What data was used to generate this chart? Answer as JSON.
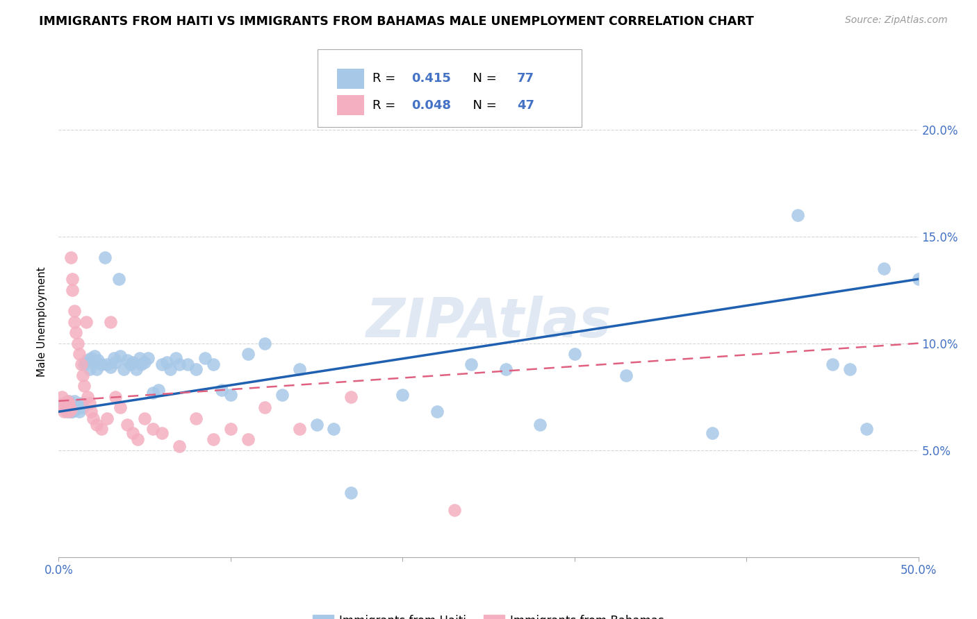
{
  "title": "IMMIGRANTS FROM HAITI VS IMMIGRANTS FROM BAHAMAS MALE UNEMPLOYMENT CORRELATION CHART",
  "source": "Source: ZipAtlas.com",
  "xlabel_haiti": "Immigrants from Haiti",
  "xlabel_bahamas": "Immigrants from Bahamas",
  "ylabel": "Male Unemployment",
  "xlim": [
    0.0,
    0.5
  ],
  "ylim": [
    0.0,
    0.22
  ],
  "xtick_positions": [
    0.0,
    0.1,
    0.2,
    0.3,
    0.4,
    0.5
  ],
  "xtick_labels": [
    "0.0%",
    "",
    "",
    "",
    "",
    "50.0%"
  ],
  "yticks": [
    0.05,
    0.1,
    0.15,
    0.2
  ],
  "ytick_labels": [
    "5.0%",
    "10.0%",
    "15.0%",
    "20.0%"
  ],
  "haiti_R": 0.415,
  "haiti_N": 77,
  "bahamas_R": 0.048,
  "bahamas_N": 47,
  "haiti_color": "#a8c8e8",
  "bahamas_color": "#f4afc0",
  "haiti_line_color": "#2060b0",
  "bahamas_line_color": "#e06080",
  "watermark": "ZIPAtlas",
  "haiti_scatter_x": [
    0.003,
    0.004,
    0.005,
    0.005,
    0.006,
    0.006,
    0.007,
    0.007,
    0.008,
    0.008,
    0.009,
    0.01,
    0.01,
    0.011,
    0.012,
    0.013,
    0.014,
    0.015,
    0.016,
    0.017,
    0.018,
    0.019,
    0.02,
    0.021,
    0.022,
    0.023,
    0.025,
    0.027,
    0.028,
    0.03,
    0.032,
    0.033,
    0.035,
    0.036,
    0.038,
    0.04,
    0.042,
    0.043,
    0.045,
    0.047,
    0.048,
    0.05,
    0.052,
    0.055,
    0.058,
    0.06,
    0.063,
    0.065,
    0.068,
    0.07,
    0.075,
    0.08,
    0.085,
    0.09,
    0.095,
    0.1,
    0.11,
    0.12,
    0.13,
    0.14,
    0.15,
    0.16,
    0.17,
    0.2,
    0.22,
    0.24,
    0.26,
    0.28,
    0.3,
    0.33,
    0.38,
    0.43,
    0.45,
    0.46,
    0.47,
    0.48,
    0.5
  ],
  "haiti_scatter_y": [
    0.072,
    0.069,
    0.072,
    0.068,
    0.07,
    0.073,
    0.068,
    0.071,
    0.07,
    0.068,
    0.073,
    0.069,
    0.071,
    0.07,
    0.068,
    0.072,
    0.07,
    0.09,
    0.091,
    0.092,
    0.088,
    0.093,
    0.091,
    0.094,
    0.088,
    0.092,
    0.09,
    0.14,
    0.09,
    0.089,
    0.093,
    0.091,
    0.13,
    0.094,
    0.088,
    0.092,
    0.09,
    0.091,
    0.088,
    0.093,
    0.09,
    0.091,
    0.093,
    0.077,
    0.078,
    0.09,
    0.091,
    0.088,
    0.093,
    0.09,
    0.09,
    0.088,
    0.093,
    0.09,
    0.078,
    0.076,
    0.095,
    0.1,
    0.076,
    0.088,
    0.062,
    0.06,
    0.03,
    0.076,
    0.068,
    0.09,
    0.088,
    0.062,
    0.095,
    0.085,
    0.058,
    0.16,
    0.09,
    0.088,
    0.06,
    0.135,
    0.13
  ],
  "bahamas_scatter_x": [
    0.002,
    0.003,
    0.003,
    0.004,
    0.004,
    0.005,
    0.005,
    0.006,
    0.006,
    0.007,
    0.007,
    0.008,
    0.008,
    0.009,
    0.009,
    0.01,
    0.011,
    0.012,
    0.013,
    0.014,
    0.015,
    0.016,
    0.017,
    0.018,
    0.019,
    0.02,
    0.022,
    0.025,
    0.028,
    0.03,
    0.033,
    0.036,
    0.04,
    0.043,
    0.046,
    0.05,
    0.055,
    0.06,
    0.07,
    0.08,
    0.09,
    0.1,
    0.11,
    0.12,
    0.14,
    0.17,
    0.23
  ],
  "bahamas_scatter_y": [
    0.075,
    0.07,
    0.068,
    0.072,
    0.069,
    0.071,
    0.073,
    0.068,
    0.072,
    0.069,
    0.14,
    0.13,
    0.125,
    0.115,
    0.11,
    0.105,
    0.1,
    0.095,
    0.09,
    0.085,
    0.08,
    0.11,
    0.075,
    0.072,
    0.068,
    0.065,
    0.062,
    0.06,
    0.065,
    0.11,
    0.075,
    0.07,
    0.062,
    0.058,
    0.055,
    0.065,
    0.06,
    0.058,
    0.052,
    0.065,
    0.055,
    0.06,
    0.055,
    0.07,
    0.06,
    0.075,
    0.022
  ],
  "haiti_line_x": [
    0.0,
    0.5
  ],
  "haiti_line_y": [
    0.068,
    0.13
  ],
  "bahamas_line_x": [
    0.0,
    0.5
  ],
  "bahamas_line_y": [
    0.073,
    0.1
  ]
}
